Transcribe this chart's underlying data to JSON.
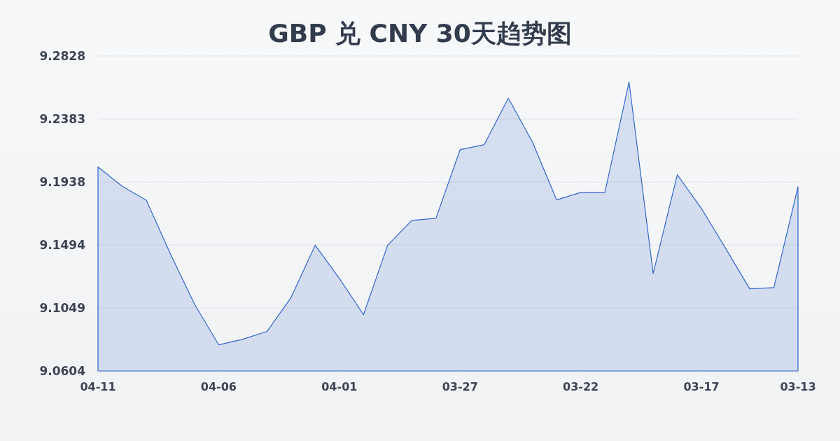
{
  "chart_data": {
    "type": "area",
    "title": "GBP 兑 CNY 30天趋势图",
    "categories": [
      "04-11",
      null,
      null,
      null,
      null,
      "04-06",
      null,
      null,
      null,
      null,
      "04-01",
      null,
      null,
      null,
      null,
      "03-27",
      null,
      null,
      null,
      null,
      "03-22",
      null,
      null,
      null,
      null,
      "03-17",
      null,
      null,
      null,
      "03-13"
    ],
    "values": [
      9.2045,
      9.1909,
      9.181,
      9.143,
      9.1076,
      9.0789,
      9.0828,
      9.0883,
      9.1124,
      9.1492,
      9.1257,
      9.1002,
      9.1492,
      9.1667,
      9.1682,
      9.2166,
      9.2202,
      9.253,
      9.222,
      9.1812,
      9.1865,
      9.1865,
      9.2645,
      9.1293,
      9.199,
      9.1751,
      9.1471,
      9.1184,
      9.1193,
      9.1904
    ],
    "color": "#3366cc",
    "ylim": [
      9.0604,
      9.2828
    ],
    "yticks": [
      9.0604,
      9.1049,
      9.1494,
      9.1938,
      9.2383,
      9.2828
    ],
    "grid": "y"
  }
}
